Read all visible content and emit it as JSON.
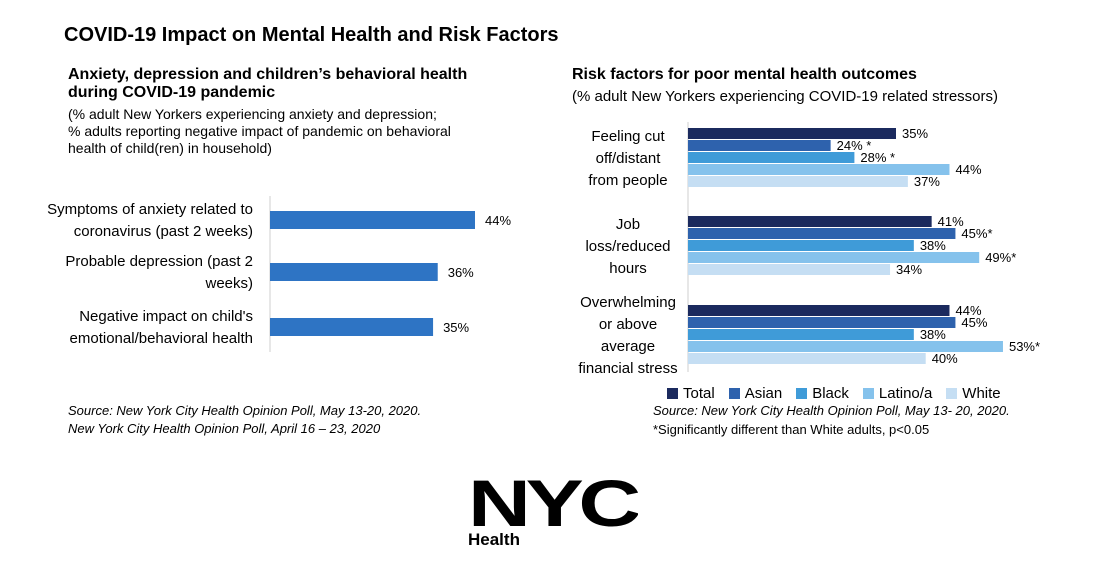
{
  "page": {
    "title": "COVID-19 Impact on Mental Health and Risk Factors"
  },
  "left_panel": {
    "title_line1": "Anxiety, depression and children’s behavioral health",
    "title_line2": "during COVID-19 pandemic",
    "note_line1": "(% adult New Yorkers experiencing anxiety and depression;",
    "note_line2": "% adults reporting negative impact of pandemic on behavioral",
    "note_line3": "health of child(ren) in household)",
    "source_line1": "Source: New York City Health Opinion Poll, May 13-20, 2020.",
    "source_line2": "New York City Health Opinion Poll, April 16 – 23, 2020"
  },
  "right_panel": {
    "title": "Risk factors for poor mental health outcomes",
    "note": "(% adult New Yorkers experiencing COVID-19 related stressors)",
    "source": "Source: New York City Health Opinion Poll, May 13- 20, 2020.",
    "footnote": "*Significantly different than White adults, p<0.05"
  },
  "logo": {
    "text": "NYC",
    "subtext": "Health"
  },
  "chart_data": [
    {
      "type": "bar",
      "orientation": "horizontal",
      "categories": [
        [
          "Symptoms of anxiety related to",
          "coronavirus (past 2 weeks)"
        ],
        [
          "Probable depression (past 2",
          "weeks)"
        ],
        [
          "Negative impact on child's",
          "emotional/behavioral health"
        ]
      ],
      "values": [
        44,
        36,
        35
      ],
      "value_labels": [
        "44%",
        "36%",
        "35%"
      ],
      "color": "#2e74c4",
      "xlim": [
        0,
        60
      ],
      "grid": false
    },
    {
      "type": "bar",
      "orientation": "horizontal",
      "categories": [
        [
          "Feeling cut",
          "off/distant",
          "from people"
        ],
        [
          "Job",
          "loss/reduced",
          "hours"
        ],
        [
          "Overwhelming",
          "or above",
          "average",
          "financial stress"
        ]
      ],
      "series": [
        {
          "name": "Total",
          "color": "#1b2a5e",
          "values": [
            35,
            41,
            44
          ],
          "labels": [
            "35%",
            "41%",
            "44%"
          ]
        },
        {
          "name": "Asian",
          "color": "#2e62ad",
          "values": [
            24,
            45,
            45
          ],
          "labels": [
            "24% *",
            "45%*",
            "45%"
          ]
        },
        {
          "name": "Black",
          "color": "#3f9bd8",
          "values": [
            28,
            38,
            38
          ],
          "labels": [
            "28% *",
            "38%",
            "38%"
          ]
        },
        {
          "name": "Latino/a",
          "color": "#85c2ec",
          "values": [
            44,
            49,
            53
          ],
          "labels": [
            "44%",
            "49%*",
            "53%*"
          ]
        },
        {
          "name": "White",
          "color": "#c5def3",
          "values": [
            37,
            34,
            40
          ],
          "labels": [
            "37%",
            "34%",
            "40%"
          ]
        }
      ],
      "xlim": [
        0,
        60
      ],
      "grid": false,
      "legend": "bottom"
    }
  ]
}
